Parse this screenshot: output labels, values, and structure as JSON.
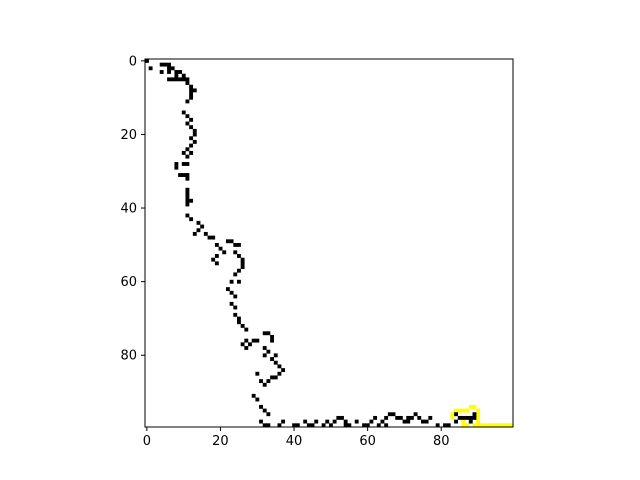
{
  "chart_data": {
    "type": "heatmap",
    "title": "",
    "xlabel": "",
    "ylabel": "",
    "xlim": [
      -0.5,
      99.5
    ],
    "ylim": [
      99.5,
      -0.5
    ],
    "xticks": [
      0,
      20,
      40,
      60,
      80
    ],
    "yticks": [
      0,
      20,
      40,
      60,
      80
    ],
    "xtick_labels": [
      "0",
      "20",
      "40",
      "60",
      "80"
    ],
    "ytick_labels": [
      "0",
      "20",
      "40",
      "60",
      "80"
    ],
    "grid": false,
    "colors": {
      "background": "#ffffff",
      "path": "#000000",
      "highlight": "#ffff00"
    },
    "black_cells": [
      [
        0,
        0
      ],
      [
        1,
        2
      ],
      [
        4,
        1
      ],
      [
        5,
        1
      ],
      [
        6,
        1
      ],
      [
        4,
        3
      ],
      [
        7,
        2
      ],
      [
        8,
        3
      ],
      [
        9,
        3
      ],
      [
        10,
        4
      ],
      [
        9,
        5
      ],
      [
        10,
        5
      ],
      [
        6,
        2
      ],
      [
        6,
        3
      ],
      [
        6,
        5
      ],
      [
        7,
        5
      ],
      [
        8,
        5
      ],
      [
        8,
        4
      ],
      [
        11,
        5
      ],
      [
        11,
        6
      ],
      [
        12,
        7
      ],
      [
        12,
        8
      ],
      [
        12,
        9
      ],
      [
        13,
        8
      ],
      [
        12,
        10
      ],
      [
        11,
        11
      ],
      [
        10,
        14
      ],
      [
        11,
        15
      ],
      [
        12,
        16
      ],
      [
        11,
        17
      ],
      [
        12,
        18
      ],
      [
        13,
        19
      ],
      [
        13,
        20
      ],
      [
        12,
        21
      ],
      [
        13,
        22
      ],
      [
        12,
        23
      ],
      [
        11,
        24
      ],
      [
        10,
        25
      ],
      [
        12,
        25
      ],
      [
        11,
        26
      ],
      [
        10,
        28
      ],
      [
        11,
        28
      ],
      [
        8,
        28
      ],
      [
        8,
        29
      ],
      [
        9,
        31
      ],
      [
        10,
        31
      ],
      [
        11,
        31
      ],
      [
        11,
        32
      ],
      [
        11,
        35
      ],
      [
        11,
        36
      ],
      [
        11,
        37
      ],
      [
        11,
        38
      ],
      [
        11,
        39
      ],
      [
        12,
        38
      ],
      [
        11,
        42
      ],
      [
        12,
        43
      ],
      [
        14,
        44
      ],
      [
        15,
        45
      ],
      [
        14,
        46
      ],
      [
        13,
        47
      ],
      [
        16,
        47
      ],
      [
        17,
        48
      ],
      [
        18,
        48
      ],
      [
        19,
        50
      ],
      [
        20,
        51
      ],
      [
        19,
        53
      ],
      [
        18,
        54
      ],
      [
        19,
        55
      ],
      [
        21,
        52
      ],
      [
        22,
        49
      ],
      [
        23,
        49
      ],
      [
        24,
        50
      ],
      [
        25,
        50
      ],
      [
        24,
        52
      ],
      [
        25,
        53
      ],
      [
        26,
        54
      ],
      [
        26,
        55
      ],
      [
        26,
        56
      ],
      [
        25,
        57
      ],
      [
        24,
        58
      ],
      [
        25,
        60
      ],
      [
        23,
        60
      ],
      [
        22,
        62
      ],
      [
        23,
        63
      ],
      [
        24,
        64
      ],
      [
        23,
        66
      ],
      [
        24,
        67
      ],
      [
        24,
        69
      ],
      [
        25,
        70
      ],
      [
        25,
        71
      ],
      [
        26,
        72
      ],
      [
        27,
        73
      ],
      [
        27,
        76
      ],
      [
        26,
        77
      ],
      [
        27,
        78
      ],
      [
        28,
        77
      ],
      [
        29,
        76
      ],
      [
        30,
        76
      ],
      [
        32,
        74
      ],
      [
        33,
        74
      ],
      [
        34,
        75
      ],
      [
        34,
        76
      ],
      [
        32,
        78
      ],
      [
        33,
        79
      ],
      [
        32,
        80
      ],
      [
        34,
        81
      ],
      [
        35,
        80
      ],
      [
        35,
        82
      ],
      [
        36,
        83
      ],
      [
        37,
        84
      ],
      [
        36,
        85
      ],
      [
        35,
        86
      ],
      [
        30,
        85
      ],
      [
        31,
        87
      ],
      [
        32,
        88
      ],
      [
        33,
        87
      ],
      [
        34,
        86
      ],
      [
        29,
        91
      ],
      [
        30,
        92
      ],
      [
        31,
        94
      ],
      [
        32,
        95
      ],
      [
        33,
        96
      ],
      [
        31,
        98
      ],
      [
        32,
        99
      ],
      [
        33,
        99
      ],
      [
        36,
        99
      ],
      [
        37,
        98
      ],
      [
        40,
        99
      ],
      [
        41,
        99
      ],
      [
        43,
        98
      ],
      [
        44,
        99
      ],
      [
        45,
        99
      ],
      [
        46,
        98
      ],
      [
        48,
        99
      ],
      [
        49,
        98
      ],
      [
        50,
        99
      ],
      [
        51,
        98
      ],
      [
        52,
        97
      ],
      [
        53,
        97
      ],
      [
        54,
        98
      ],
      [
        54,
        99
      ],
      [
        55,
        99
      ],
      [
        57,
        98
      ],
      [
        59,
        99
      ],
      [
        60,
        99
      ],
      [
        61,
        98
      ],
      [
        62,
        97
      ],
      [
        63,
        99
      ],
      [
        64,
        98
      ],
      [
        65,
        97
      ],
      [
        65,
        99
      ],
      [
        66,
        96
      ],
      [
        67,
        96
      ],
      [
        68,
        97
      ],
      [
        69,
        97
      ],
      [
        70,
        98
      ],
      [
        71,
        98
      ],
      [
        71,
        97
      ],
      [
        72,
        97
      ],
      [
        73,
        96
      ],
      [
        74,
        97
      ],
      [
        75,
        98
      ],
      [
        76,
        98
      ],
      [
        77,
        97
      ],
      [
        79,
        99
      ],
      [
        81,
        99
      ],
      [
        82,
        99
      ],
      [
        84,
        98
      ],
      [
        84,
        96
      ],
      [
        85,
        97
      ],
      [
        86,
        97
      ],
      [
        87,
        97
      ],
      [
        88,
        97
      ],
      [
        88,
        98
      ],
      [
        89,
        96
      ],
      [
        89,
        97
      ]
    ],
    "yellow_cells": [
      [
        83,
        96
      ],
      [
        83,
        97
      ],
      [
        84,
        95
      ],
      [
        85,
        95
      ],
      [
        86,
        95
      ],
      [
        87,
        95
      ],
      [
        88,
        94
      ],
      [
        89,
        94
      ],
      [
        90,
        95
      ],
      [
        90,
        96
      ],
      [
        90,
        97
      ],
      [
        90,
        98
      ],
      [
        90,
        99
      ],
      [
        86,
        98
      ],
      [
        86,
        99
      ],
      [
        87,
        99
      ],
      [
        89,
        99
      ],
      [
        91,
        99
      ],
      [
        92,
        99
      ],
      [
        93,
        99
      ],
      [
        94,
        99
      ],
      [
        95,
        99
      ],
      [
        96,
        99
      ],
      [
        97,
        99
      ],
      [
        98,
        99
      ],
      [
        99,
        99
      ]
    ]
  }
}
